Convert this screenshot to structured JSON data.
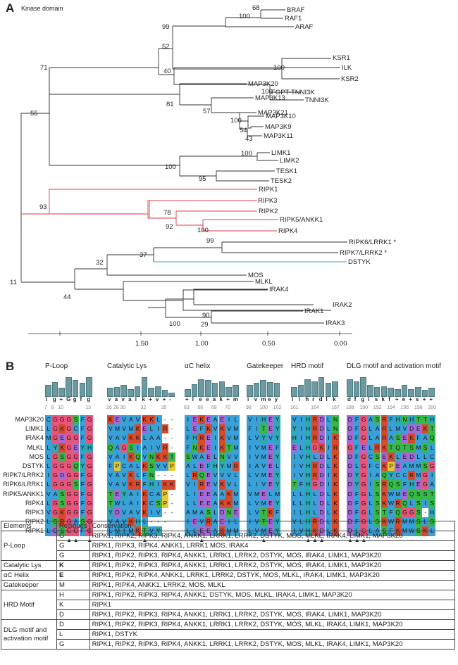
{
  "panel_a": {
    "letter": "A",
    "title": "Kinase domain",
    "taxa": [
      "BRAF",
      "RAF1",
      "ARAF",
      "KSR1",
      "KSR2",
      "ILK",
      "FGPT-TNNI3K",
      "TNNI3K",
      "MAP3K20",
      "MAP3K13",
      "MAP3K21",
      "MAP3K10",
      "MAP3K9",
      "MAP3K11",
      "LIMK1",
      "LIMK2",
      "TESK1",
      "TESK2",
      "RIPK1",
      "RIPK3",
      "RIPK2",
      "RIPK5/ANKK1",
      "RIPK4",
      "RIPK6/LRRK1 *",
      "RIPK7/LRRK2 *",
      "DSTYK",
      "MOS",
      "MLKL",
      "IRAK4",
      "IRAK2",
      "IRAK1",
      "IRAK3"
    ],
    "bootstrap": [
      "68",
      "100",
      "99",
      "100",
      "52",
      "71",
      "40",
      "100",
      "55",
      "81",
      "57",
      "100",
      "54",
      "43",
      "100",
      "100",
      "95",
      "93",
      "78",
      "92",
      "100",
      "99",
      "37",
      "32",
      "11",
      "44",
      "100",
      "90",
      "29"
    ],
    "scale_ticks": [
      "1.50",
      "1.00",
      "0.50",
      "0.00"
    ],
    "colors": {
      "ripk_clade": "#e23b3b",
      "dstyk_branch": "#2aa3d6",
      "tree": "#333333"
    }
  },
  "panel_b": {
    "letter": "B",
    "sections": [
      {
        "title": "P-Loop",
        "consensus": [
          "l",
          "g",
          "+",
          "G",
          "g",
          "f",
          "g"
        ],
        "numbers": [
          "7",
          "8",
          "10",
          "",
          "",
          "",
          "13"
        ],
        "markers": [
          "",
          "",
          "",
          "▲",
          "▲",
          "",
          "▲"
        ]
      },
      {
        "title": "Catalytic Lys",
        "consensus": [
          "v",
          "a",
          "v",
          "a",
          "i",
          "k",
          "+",
          "v",
          "+",
          "-"
        ],
        "numbers": [
          "26",
          "28",
          "30",
          "",
          "",
          "32",
          "",
          "",
          "35",
          ""
        ],
        "markers": [
          "",
          "",
          "",
          "",
          "",
          "▲",
          "",
          "",
          "",
          ""
        ]
      },
      {
        "title": "αC helix",
        "consensus": [
          "+",
          "l",
          "e",
          "e",
          "a",
          "k",
          "+",
          "m"
        ],
        "numbers": [
          "63",
          "",
          "66",
          "",
          "68",
          "",
          "70",
          ""
        ],
        "markers": [
          "",
          "",
          "▲",
          "",
          "",
          "",
          "",
          ""
        ]
      },
      {
        "title": "Gatekeeper",
        "consensus": [
          "i",
          "v",
          "m",
          "e",
          "y"
        ],
        "numbers": [
          "98",
          "",
          "100",
          "",
          "102"
        ],
        "markers": [
          "",
          "",
          "▲",
          "",
          ""
        ]
      },
      {
        "title": "HRD motif",
        "consensus": [
          "l",
          "i",
          "h",
          "r",
          "d",
          "l",
          "k"
        ],
        "numbers": [
          "161",
          "",
          "",
          "164",
          "",
          "",
          "167"
        ],
        "markers": [
          "",
          "",
          "▲",
          "▲",
          "▲",
          "",
          ""
        ]
      },
      {
        "title": "DLG motif and activation motif",
        "consensus": [
          "d",
          "f",
          "g",
          "l",
          "s",
          "k",
          "f",
          "+",
          "e",
          "+",
          "s",
          "+",
          "+"
        ],
        "numbers": [
          "188",
          "",
          "190",
          "",
          "192",
          "",
          "194",
          "",
          "196",
          "",
          "198",
          "",
          "200"
        ],
        "markers": [
          "▲",
          "▲",
          "▲",
          "",
          "",
          "",
          "",
          "",
          "",
          "",
          "",
          "",
          ""
        ]
      }
    ],
    "rows": [
      {
        "name": "MAP3K20",
        "seqs": [
          "CGGGSFG",
          "KEVAVKKL--",
          "IEKEAEIL",
          "VIHEY",
          "VIHRDLN",
          "DFGASRFHNHTTH"
        ]
      },
      {
        "name": "LIMK1",
        "seqs": [
          "LGKGCFG",
          "VMVMKELIR-",
          "LEFKVKVM",
          "FITEY",
          "YIHRDLN",
          "DFGLARLMVDEKT"
        ]
      },
      {
        "name": "IRAK4",
        "seqs": [
          "MGEGGFG",
          "VAVKKLAA--",
          "FHREIKVM",
          "LVYVY",
          "HIHRDIK",
          "DFGLARASEKFAQ"
        ]
      },
      {
        "name": "MLKL",
        "seqs": [
          "LYKGEYH",
          "QAGSIAIVR-",
          "FNKEIKTM",
          "IVMEF",
          "ELHGKIR",
          "GFELRKTQTSMSL"
        ]
      },
      {
        "name": "MOS",
        "seqs": [
          "LGSGGFG",
          "VAIKQVNKKT",
          "SWAELNVV",
          "IVMEY",
          "IVHLDLK",
          "DFGCSEKLEDLLC"
        ]
      },
      {
        "name": "DSTYK",
        "seqs": [
          "LGGGQYG",
          "FPCALKSVVP",
          "ALEFHYMR",
          "IAVEL",
          "IVHRDLK",
          "DLGFCKPEAMMSG"
        ]
      },
      {
        "name": "RIPK7/LRRK2",
        "seqs": [
          "IGDGGFG",
          "VAVKLFN---",
          "LRQEVVVL",
          "LVMEY",
          "IVHRDIK",
          "DYGIAQYCCRMGI"
        ]
      },
      {
        "name": "RIPK6/LRRK1",
        "seqs": [
          "LGGGSFG",
          "VAVKRFHIKK",
          "VIREVKVL",
          "LIVEY",
          "TFHGDIK",
          "DYGISRQSFHEGA"
        ]
      },
      {
        "name": "RIPK5/ANKK1",
        "seqs": [
          "VASGGFG",
          "TEYAIKCAP-",
          "LIEEAAKM",
          "VMELM",
          "LLHLDLK",
          "DFGLSKWMEQSST"
        ]
      },
      {
        "name": "RIPK4",
        "seqs": [
          "LGSGGFG",
          "TWLAIKCSP-",
          "LLEEAKKM",
          "LVMEY",
          "LLHLDLK",
          "DFGLSKWRQLSIS"
        ]
      },
      {
        "name": "RIPK3",
        "seqs": [
          "VGKGGFG",
          "YDVAVKIV--",
          "AMASLDNE",
          "LVTKF",
          "ILHLDLK",
          "DFGLSTFQGGS-H"
        ]
      },
      {
        "name": "RIPK2",
        "seqs": [
          "LSRGASG",
          "VAVKHL---",
          "IEVRAEIL",
          "IVTEY",
          "VLHRDLK",
          "DFGLSKWRMMSLS"
        ]
      },
      {
        "name": "RIPK1",
        "seqs": [
          "LDSGGFG",
          "LMIMKTVY--",
          "LLEEAKMM",
          "LVMEY",
          "IVHKDLK",
          "DLGLASFKMWSKL"
        ]
      }
    ],
    "table": {
      "headers": [
        "Elements",
        "Residues",
        "Conservation"
      ],
      "groups": [
        {
          "element": "P-Loop",
          "rows": [
            {
              "residue": "G",
              "conservation": "RIPK1, RIPK2, RIPK3, RIPK4, ANKK1, LRRK1, LRRK2, DSTYK, MOS, MLKL, IRAK4, LIMK1, MAP3K20"
            },
            {
              "residue": "G",
              "conservation": "RIPK1, RIPK3, RIPK4, ANKK1, LRRK1 MOS,  IRAK4"
            },
            {
              "residue": "G",
              "conservation": "RIPK1, RIPK2, RIPK3, RIPK4, ANKK1, LRRK1, LRRK2, DSTYK, MOS, IRAK4, LIMK1, MAP3K20"
            }
          ]
        },
        {
          "element": "Catalytic Lys",
          "rows": [
            {
              "residue": "K",
              "conservation": "RIPK1, RIPK2, RIPK3, RIPK4, ANKK1, LRRK1, LRRK2, DSTYK, MOS, IRAK4, LIMK1, MAP3K20"
            }
          ]
        },
        {
          "element": "αC Helix",
          "rows": [
            {
              "residue": "E",
              "conservation": "RIPK1, RIPK2, RIPK4, ANKK1, LRRK1, LRRK2, DSTYK, MOS, MLKL, IRAK4, LIMK1, MAP3K20"
            }
          ]
        },
        {
          "element": "Gatekeeper",
          "rows": [
            {
              "residue": "M",
              "conservation": "RIPK1, RIPK4, ANKK1, LRRK2, MOS, MLKL"
            }
          ]
        },
        {
          "element": "HRD Motif",
          "rows": [
            {
              "residue": "H",
              "conservation": "RIPK1, RIPK2, RIPK3, RIPK4, ANKK1, DSTYK, MOS, MLKL, IRAK4, LIMK1, MAP3K20"
            },
            {
              "residue": "K",
              "conservation": "RIPK1"
            },
            {
              "residue": "D",
              "conservation": "RIPK1, RIPK2, RIPK3, RIPK4, ANKK1, LRRK1, LRRK2, DSTYK, MOS, IRAK4, LIMK1, MAP3K20"
            }
          ]
        },
        {
          "element": "DLG motif and activation motif",
          "rows": [
            {
              "residue": "D",
              "conservation": "RIPK1, RIPK2, RIPK3, RIPK4, ANKK1, LRRK1, LRRK2, DSTYK, MOS, MLKL, IRAK4, LIMK1, MAP3K20"
            },
            {
              "residue": "L",
              "conservation": "RIPK1, DSTYK"
            },
            {
              "residue": "G",
              "conservation": "RIPK1, RIPK2, RIPK3, RIPK4, ANKK1, LRRK1, LRRK2, DSTYK, MOS, MLKL, IRAK4, LIMK1, MAP3K20"
            }
          ]
        }
      ]
    }
  }
}
